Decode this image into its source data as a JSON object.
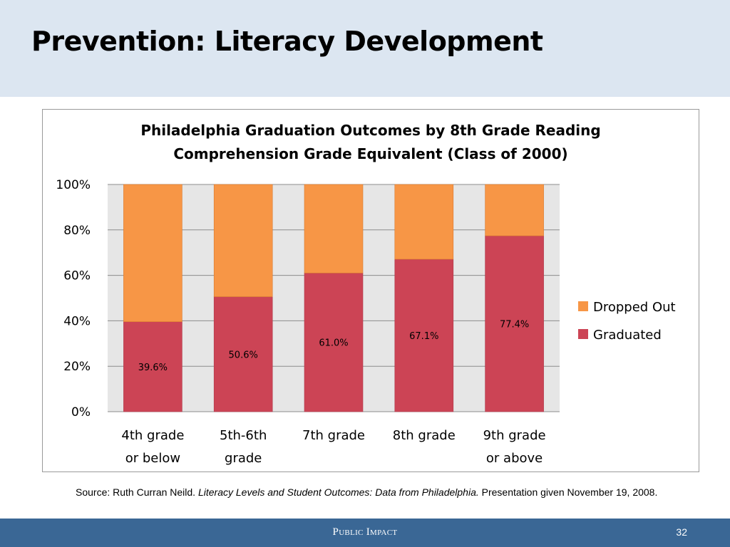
{
  "slide": {
    "title": "Prevention: Literacy Development",
    "page_number": "32",
    "footer_brand": "Public Impact"
  },
  "source": {
    "prefix": "Source: Ruth Curran Neild. ",
    "italic": "Literacy Levels and Student Outcomes: Data from Philadelphia.",
    "suffix": " Presentation given November 19, 2008."
  },
  "colors": {
    "header_bg": "#dce6f1",
    "footer_bg": "#3a6795",
    "graduated": "#cc4455",
    "dropped_out": "#f79646",
    "plot_bg": "#e6e6e6"
  },
  "chart_data": {
    "type": "bar",
    "stacked": true,
    "title_lines": [
      "Philadelphia Graduation Outcomes by 8th Grade Reading",
      "Comprehension Grade Equivalent (Class of 2000)"
    ],
    "categories": [
      [
        "4th grade",
        "or below"
      ],
      [
        "5th-6th",
        "grade"
      ],
      [
        "7th grade"
      ],
      [
        "8th grade"
      ],
      [
        "9th grade",
        "or above"
      ]
    ],
    "series": [
      {
        "name": "Graduated",
        "values": [
          39.6,
          50.6,
          61.0,
          67.1,
          77.4
        ],
        "labels": [
          "39.6%",
          "50.6%",
          "61.0%",
          "67.1%",
          "77.4%"
        ],
        "color": "#cc4455"
      },
      {
        "name": "Dropped Out",
        "values": [
          60.4,
          49.4,
          39.0,
          32.9,
          22.6
        ],
        "color": "#f79646"
      }
    ],
    "ylim": [
      0,
      100
    ],
    "yticks": [
      "0%",
      "20%",
      "40%",
      "60%",
      "80%",
      "100%"
    ],
    "grid": true,
    "legend": "right"
  }
}
